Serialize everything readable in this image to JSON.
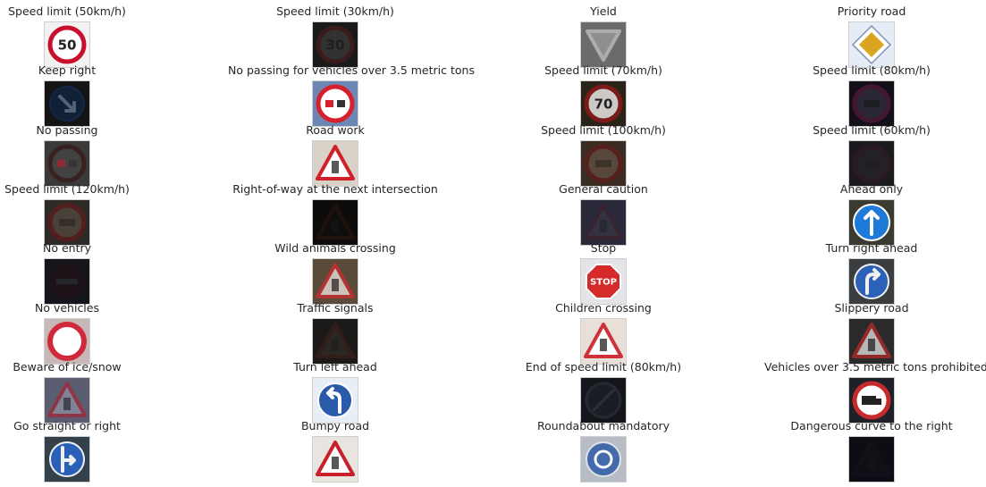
{
  "signs": [
    {
      "title": "Speed limit (50km/h)",
      "icon": "speed-limit-50-sign-icon",
      "kind": "speed",
      "text": "50",
      "bg": "#f2f2f2",
      "ring": "#c8102e",
      "fill": "#ffffff",
      "brightness": 1.0
    },
    {
      "title": "Speed limit (30km/h)",
      "icon": "speed-limit-30-sign-icon",
      "kind": "speed",
      "text": "30",
      "bg": "#1a1a1a",
      "ring": "#5a1e1e",
      "fill": "#4a4a4a",
      "brightness": 0.35
    },
    {
      "title": "Yield",
      "icon": "yield-sign-icon",
      "kind": "yield",
      "text": "",
      "bg": "#6b6b6b",
      "ring": "#c0c0c0",
      "fill": "#9a9a9a",
      "brightness": 0.7
    },
    {
      "title": "Priority road",
      "icon": "priority-road-sign-icon",
      "kind": "priority",
      "text": "",
      "bg": "#e6ecf5",
      "ring": "#ffffff",
      "fill": "#d9a520",
      "brightness": 1.0
    },
    {
      "title": "Keep right",
      "icon": "keep-right-sign-icon",
      "kind": "keepright",
      "text": "",
      "bg": "#141414",
      "ring": "#0d2a55",
      "fill": "#0d2a55",
      "brightness": 0.4
    },
    {
      "title": "No passing for vehicles over 3.5 metric tons",
      "icon": "no-passing-trucks-sign-icon",
      "kind": "nopasstruck",
      "text": "",
      "bg": "#6d87b5",
      "ring": "#d6202e",
      "fill": "#ffffff",
      "brightness": 1.0
    },
    {
      "title": "Speed limit (70km/h)",
      "icon": "speed-limit-70-sign-icon",
      "kind": "speed",
      "text": "70",
      "bg": "#2a2418",
      "ring": "#8a1a1a",
      "fill": "#e8e8e8",
      "brightness": 0.8
    },
    {
      "title": "Speed limit (80km/h)",
      "icon": "speed-limit-80-sign-icon",
      "kind": "speed",
      "text": "",
      "bg": "#141018",
      "ring": "#6a2040",
      "fill": "#3a3a4a",
      "brightness": 0.4
    },
    {
      "title": "No passing",
      "icon": "no-passing-sign-icon",
      "kind": "nopass",
      "text": "",
      "bg": "#3a3a3a",
      "ring": "#3a0e0e",
      "fill": "#4a4a4a",
      "brightness": 0.4
    },
    {
      "title": "Road work",
      "icon": "road-work-sign-icon",
      "kind": "roadwork",
      "text": "",
      "bg": "#d8d2c8",
      "ring": "#d0202a",
      "fill": "#ffffff",
      "brightness": 1.0
    },
    {
      "title": "Speed limit (100km/h)",
      "icon": "speed-limit-100-sign-icon",
      "kind": "speed",
      "text": "",
      "bg": "#3a2c22",
      "ring": "#6a1a1a",
      "fill": "#6a5a4a",
      "brightness": 0.5
    },
    {
      "title": "Speed limit (60km/h)",
      "icon": "speed-limit-60-sign-icon",
      "kind": "speed",
      "text": "",
      "bg": "#1c1a1e",
      "ring": "#3a1a2a",
      "fill": "#2c2a30",
      "brightness": 0.3
    },
    {
      "title": "Speed limit (120km/h)",
      "icon": "speed-limit-120-sign-icon",
      "kind": "speed",
      "text": "",
      "bg": "#2e2a26",
      "ring": "#6a1818",
      "fill": "#5a4e44",
      "brightness": 0.5
    },
    {
      "title": "Right-of-way at the next intersection",
      "icon": "right-of-way-sign-icon",
      "kind": "triangle",
      "text": "",
      "bg": "#0e0c0a",
      "ring": "#3a1a10",
      "fill": "#141210",
      "brightness": 0.2
    },
    {
      "title": "General caution",
      "icon": "general-caution-sign-icon",
      "kind": "triangle",
      "text": "",
      "bg": "#2a2a3a",
      "ring": "#4a1e2a",
      "fill": "#3a3a48",
      "brightness": 0.35
    },
    {
      "title": "Ahead only",
      "icon": "ahead-only-sign-icon",
      "kind": "ahead",
      "text": "",
      "bg": "#3a3a30",
      "ring": "#1e7ad8",
      "fill": "#1e7ad8",
      "brightness": 1.0
    },
    {
      "title": "No entry",
      "icon": "no-entry-sign-icon",
      "kind": "noentry",
      "text": "",
      "bg": "#14161c",
      "ring": "#2a0e14",
      "fill": "#2a0e14",
      "brightness": 0.25
    },
    {
      "title": "Wild animals crossing",
      "icon": "wild-animals-crossing-sign-icon",
      "kind": "animals",
      "text": "",
      "bg": "#5a4a3a",
      "ring": "#c03030",
      "fill": "#e0d8d0",
      "brightness": 0.8
    },
    {
      "title": "Stop",
      "icon": "stop-sign-icon",
      "kind": "stop",
      "text": "STOP",
      "bg": "#e4e4e8",
      "ring": "#d42a2a",
      "fill": "#d42a2a",
      "brightness": 1.0
    },
    {
      "title": "Turn right ahead",
      "icon": "turn-right-ahead-sign-icon",
      "kind": "turnright",
      "text": "",
      "bg": "#3a3e40",
      "ring": "#2a64c0",
      "fill": "#2a64c0",
      "brightness": 0.9
    },
    {
      "title": "No vehicles",
      "icon": "no-vehicles-sign-icon",
      "kind": "novehicles",
      "text": "",
      "bg": "#c8b8b8",
      "ring": "#d02a3a",
      "fill": "#ffffff",
      "brightness": 1.0
    },
    {
      "title": "Traffic signals",
      "icon": "traffic-signals-sign-icon",
      "kind": "triangle",
      "text": "",
      "bg": "#1c1a18",
      "ring": "#4a2018",
      "fill": "#3a3430",
      "brightness": 0.35
    },
    {
      "title": "Children crossing",
      "icon": "children-crossing-sign-icon",
      "kind": "children",
      "text": "",
      "bg": "#e8e0d8",
      "ring": "#d0303a",
      "fill": "#ffffff",
      "brightness": 1.0
    },
    {
      "title": "Slippery road",
      "icon": "slippery-road-sign-icon",
      "kind": "slippery",
      "text": "",
      "bg": "#2a2a2a",
      "ring": "#b02a2a",
      "fill": "#e0e0e0",
      "brightness": 0.7
    },
    {
      "title": "Beware of ice/snow",
      "icon": "beware-ice-snow-sign-icon",
      "kind": "snow",
      "text": "",
      "bg": "#5a5e70",
      "ring": "#a02a3a",
      "fill": "#8a8ea0",
      "brightness": 0.7
    },
    {
      "title": "Turn left ahead",
      "icon": "turn-left-ahead-sign-icon",
      "kind": "turnleft",
      "text": "",
      "bg": "#e8eef5",
      "ring": "#2a5aa8",
      "fill": "#2a5aa8",
      "brightness": 1.0
    },
    {
      "title": "End of speed limit (80km/h)",
      "icon": "end-speed-limit-80-sign-icon",
      "kind": "endlimit",
      "text": "",
      "bg": "#14161c",
      "ring": "#3a3e48",
      "fill": "#22262e",
      "brightness": 0.3
    },
    {
      "title": "Vehicles over 3.5 metric tons prohibited",
      "icon": "trucks-prohibited-sign-icon",
      "kind": "trucks",
      "text": "",
      "bg": "#1e2228",
      "ring": "#c82a2a",
      "fill": "#ffffff",
      "brightness": 1.0
    },
    {
      "title": "Go straight or right",
      "icon": "go-straight-or-right-sign-icon",
      "kind": "straightright",
      "text": "",
      "bg": "#34404a",
      "ring": "#2a64c0",
      "fill": "#2a64c0",
      "brightness": 0.9
    },
    {
      "title": "Bumpy road",
      "icon": "bumpy-road-sign-icon",
      "kind": "bumpy",
      "text": "",
      "bg": "#e8e4e0",
      "ring": "#c8202a",
      "fill": "#ffffff",
      "brightness": 1.0
    },
    {
      "title": "Roundabout mandatory",
      "icon": "roundabout-mandatory-sign-icon",
      "kind": "roundabout",
      "text": "",
      "bg": "#b8bcc4",
      "ring": "#3a64a8",
      "fill": "#3a64a8",
      "brightness": 0.9
    },
    {
      "title": "Dangerous curve to the right",
      "icon": "dangerous-curve-right-sign-icon",
      "kind": "triangle",
      "text": "",
      "bg": "#0c0e14",
      "ring": "#1c1a24",
      "fill": "#12141a",
      "brightness": 0.15
    }
  ]
}
